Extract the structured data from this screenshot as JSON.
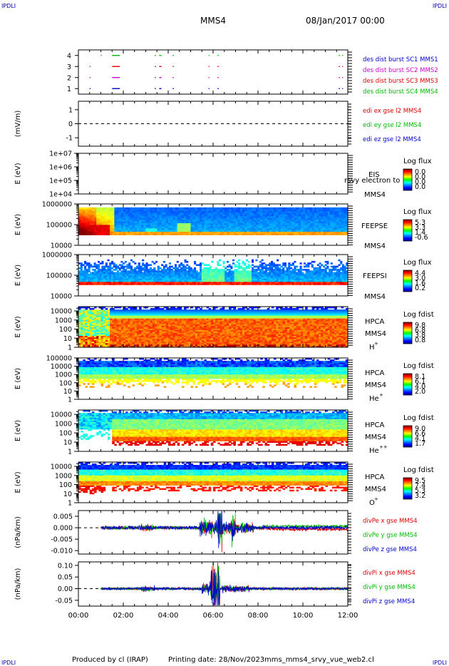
{
  "header": {
    "corner_left": "IPDLI",
    "corner_right": "IPDLI",
    "mission": "MMS4",
    "date": "08/Jan/2017 00:00"
  },
  "footer": {
    "produced_by": "Produced by cl (IRAP)",
    "printing_date": "Printing date: 28/Nov/2023",
    "script_name": "mms_mms4_srvy_vue_web2.cl",
    "corner_left": "IPDLI",
    "corner_right": "IPDLI"
  },
  "time_axis": {
    "ticks": [
      "00:00",
      "02:00",
      "04:00",
      "06:00",
      "08:00",
      "10:00",
      "12:00"
    ],
    "range_hours": [
      0,
      12
    ]
  },
  "colors": {
    "blue": "#0000cc",
    "magenta": "#cc00cc",
    "red": "#dd0000",
    "green": "#00bb00"
  },
  "chart_data": [
    {
      "type": "scatter",
      "panel": "burst",
      "yticks": [
        "4",
        "3",
        "2",
        "1"
      ],
      "ylim": [
        0.5,
        4.5
      ],
      "series": [
        {
          "name": "des dist burst SC1 MMS1",
          "level": 1,
          "color": "#0000cc",
          "segments": [
            [
              0.5,
              0.53
            ],
            [
              1.5,
              1.85
            ],
            [
              3.4,
              3.45
            ],
            [
              3.6,
              3.7
            ],
            [
              4.2,
              4.25
            ],
            [
              5.8,
              5.83
            ],
            [
              6.2,
              6.25
            ],
            [
              11.6,
              11.65
            ],
            [
              11.75,
              11.78
            ]
          ]
        },
        {
          "name": "des dist burst SC2 MMS2",
          "level": 2,
          "color": "#cc00cc",
          "segments": [
            [
              0.5,
              0.53
            ],
            [
              1.5,
              1.85
            ],
            [
              3.4,
              3.45
            ],
            [
              3.6,
              3.7
            ],
            [
              4.2,
              4.25
            ],
            [
              5.8,
              5.83
            ],
            [
              6.2,
              6.25
            ],
            [
              11.6,
              11.65
            ],
            [
              11.75,
              11.78
            ]
          ]
        },
        {
          "name": "des dist burst SC3 MMS3",
          "level": 3,
          "color": "#dd0000",
          "segments": [
            [
              0.5,
              0.53
            ],
            [
              1.5,
              1.85
            ],
            [
              3.4,
              3.45
            ],
            [
              3.6,
              3.7
            ],
            [
              4.2,
              4.25
            ],
            [
              5.8,
              5.83
            ],
            [
              6.2,
              6.25
            ],
            [
              11.6,
              11.65
            ],
            [
              11.75,
              11.78
            ]
          ]
        },
        {
          "name": "des dist burst SC4 MMS4",
          "level": 4,
          "color": "#00bb00",
          "segments": [
            [
              1.0,
              1.04
            ],
            [
              1.5,
              1.85
            ],
            [
              3.4,
              3.45
            ],
            [
              3.6,
              3.7
            ],
            [
              4.2,
              4.25
            ],
            [
              5.8,
              5.83
            ],
            [
              6.2,
              6.25
            ],
            [
              11.6,
              11.65
            ],
            [
              11.75,
              11.78
            ]
          ]
        }
      ]
    },
    {
      "type": "line",
      "panel": "edi",
      "ylabel": "(mV/m)",
      "yticks": [
        "1",
        "0",
        "-1"
      ],
      "ylim": [
        -1.6,
        1.6
      ],
      "zero_line": "dashed",
      "series": [
        {
          "name": "edi ex gse l2 MMS4",
          "color": "#dd0000"
        },
        {
          "name": "edi ey gse l2 MMS4",
          "color": "#00bb00"
        },
        {
          "name": "edi ez gse l2 MMS4",
          "color": "#0000cc"
        }
      ]
    },
    {
      "type": "heatmap",
      "panel": "eis",
      "ylabel": "E (eV)",
      "yticks": [
        "1e+07",
        "1e+06",
        "1e+05",
        "1e+04"
      ],
      "ylim": [
        10000,
        10000000
      ],
      "log_y": true,
      "label_top": "EIS",
      "label_bottom": "MMS4",
      "overlay_text": "rsvy electron to",
      "colorbar": {
        "title": "Log flux",
        "ticks": [
          "0.0",
          "0.0",
          "0.0",
          "0.0"
        ]
      }
    },
    {
      "type": "heatmap",
      "panel": "feepse",
      "ylabel": "E (eV)",
      "yticks": [
        "1000000",
        "100000",
        "10000"
      ],
      "ylim": [
        10000,
        1000000
      ],
      "log_y": true,
      "label_top": "FEEPSE",
      "label_bottom": "MMS4",
      "colorbar": {
        "title": "Log flux",
        "ticks": [
          "5.3",
          "3.3",
          "1.4",
          "-0.6"
        ]
      }
    },
    {
      "type": "heatmap",
      "panel": "feepsi",
      "ylabel": "E (eV)",
      "yticks": [
        "1000000",
        "100000",
        "10000"
      ],
      "ylim": [
        10000,
        1000000
      ],
      "log_y": true,
      "label_top": "FEEPSI",
      "label_bottom": "MMS4",
      "colorbar": {
        "title": "Log flux",
        "ticks": [
          "4.4",
          "3.0",
          "1.6",
          "0.2"
        ]
      }
    },
    {
      "type": "heatmap",
      "panel": "hpca_h",
      "ylabel": "E (eV)",
      "yticks": [
        "10000",
        "1000",
        "100",
        "10",
        "1"
      ],
      "ylim": [
        1,
        30000
      ],
      "log_y": true,
      "label_top": "HPCA",
      "label_mid": "MMS4",
      "species": "H",
      "species_sup": "+",
      "colorbar": {
        "title": "Log fdist",
        "ticks": [
          "9.8",
          "6.8",
          "3.8",
          "0.8"
        ]
      }
    },
    {
      "type": "heatmap",
      "panel": "hpca_he",
      "ylabel": "E (eV)",
      "yticks": [
        "100000",
        "10000",
        "1000",
        "100",
        "10",
        "1"
      ],
      "ylim": [
        1,
        100000
      ],
      "log_y": true,
      "label_top": "HPCA",
      "label_mid": "MMS4",
      "species": "He",
      "species_sup": "+",
      "colorbar": {
        "title": "Log fdist",
        "ticks": [
          "8.1",
          "6.1",
          "4.0",
          "2.0"
        ]
      }
    },
    {
      "type": "heatmap",
      "panel": "hpca_hepp",
      "ylabel": "E (eV)",
      "yticks": [
        "10000",
        "1000",
        "100",
        "10",
        "1"
      ],
      "ylim": [
        1,
        30000
      ],
      "log_y": true,
      "label_top": "HPCA",
      "label_mid": "MMS4",
      "species": "He",
      "species_sup": "++",
      "colorbar": {
        "title": "Log fdist",
        "ticks": [
          "9.0",
          "6.6",
          "4.1",
          "1.7"
        ]
      }
    },
    {
      "type": "heatmap",
      "panel": "hpca_o",
      "ylabel": "E (eV)",
      "yticks": [
        "10000",
        "1000",
        "100",
        "10",
        "1"
      ],
      "ylim": [
        1,
        30000
      ],
      "log_y": true,
      "label_top": "HPCA",
      "label_mid": "MMS4",
      "species": "O",
      "species_sup": "+",
      "colorbar": {
        "title": "Log fdist",
        "ticks": [
          "9.5",
          "7.4",
          "5.3",
          "3.2"
        ]
      }
    },
    {
      "type": "line",
      "panel": "divpe",
      "ylabel": "(nPa/km)",
      "yticks": [
        "0.005",
        "0.000",
        "-0.005",
        "-0.010"
      ],
      "ylim": [
        -0.0115,
        0.0075
      ],
      "zero_line": "dashed",
      "series": [
        {
          "name": "divPe x gse MMS4",
          "color": "#dd0000"
        },
        {
          "name": "divPe y gse MMS4",
          "color": "#00bb00"
        },
        {
          "name": "divPe z gse MMS4",
          "color": "#0000cc"
        }
      ]
    },
    {
      "type": "line",
      "panel": "divpi",
      "ylabel": "(nPa/km)",
      "yticks": [
        "0.10",
        "0.05",
        "0.00",
        "-0.05"
      ],
      "ylim": [
        -0.075,
        0.115
      ],
      "zero_line": "dashed",
      "series": [
        {
          "name": "divPi x gse MMS4",
          "color": "#dd0000"
        },
        {
          "name": "divPi y gse MMS4",
          "color": "#00bb00"
        },
        {
          "name": "divPi z gse MMS4",
          "color": "#0000cc"
        }
      ]
    }
  ]
}
